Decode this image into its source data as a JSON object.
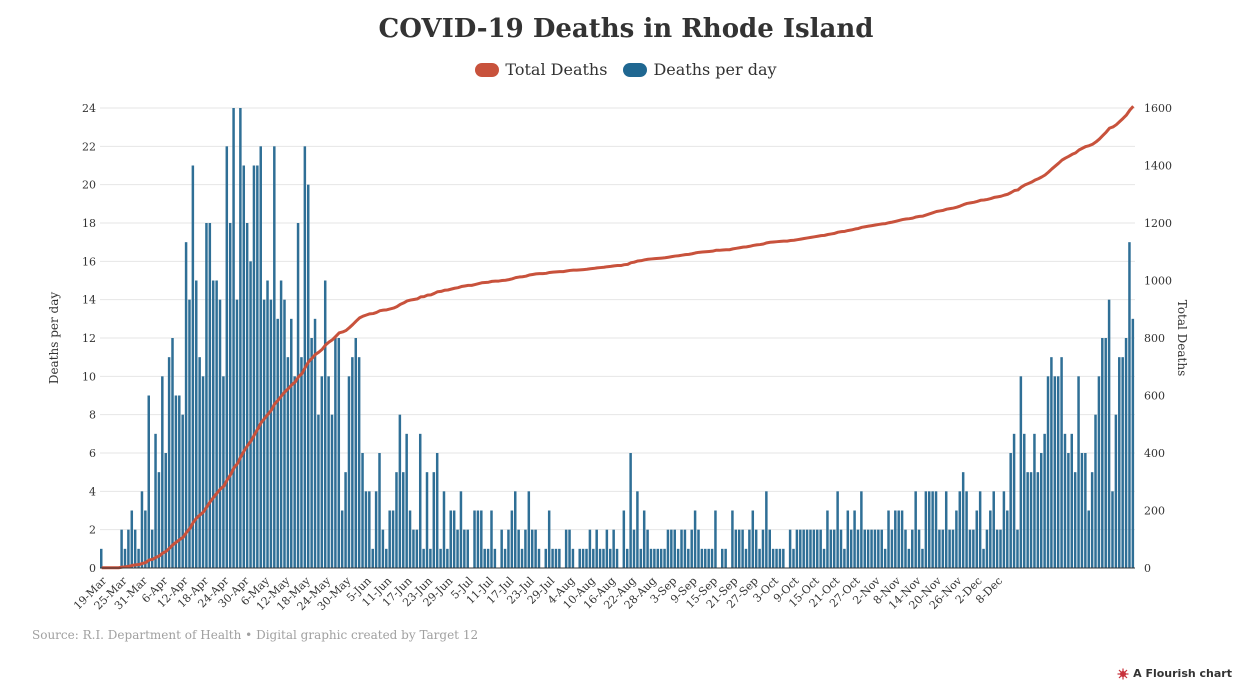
{
  "chart_data": {
    "type": "bar+line",
    "title": "COVID-19 Deaths in Rhode Island",
    "legend": [
      {
        "name": "Total Deaths",
        "color": "#c8523c"
      },
      {
        "name": "Deaths per day",
        "color": "#1f6791"
      }
    ],
    "legend_position": "top-center",
    "start_date": "2020-03-19",
    "end_date": "2020-12-08",
    "x_tick_labels": [
      "19-Mar",
      "25-Mar",
      "31-Mar",
      "6-Apr",
      "12-Apr",
      "18-Apr",
      "24-Apr",
      "30-Apr",
      "6-May",
      "12-May",
      "18-May",
      "24-May",
      "30-May",
      "5-Jun",
      "11-Jun",
      "17-Jun",
      "23-Jun",
      "29-Jun",
      "5-Jul",
      "11-Jul",
      "17-Jul",
      "23-Jul",
      "29-Jul",
      "4-Aug",
      "10-Aug",
      "16-Aug",
      "22-Aug",
      "28-Aug",
      "3-Sep",
      "9-Sep",
      "15-Sep",
      "21-Sep",
      "27-Sep",
      "3-Oct",
      "9-Oct",
      "15-Oct",
      "21-Oct",
      "27-Oct",
      "2-Nov",
      "8-Nov",
      "14-Nov",
      "20-Nov",
      "26-Nov",
      "2-Dec",
      "8-Dec"
    ],
    "y_left": {
      "label": "Deaths per day",
      "range": [
        0,
        24
      ],
      "ticks": [
        0,
        2,
        4,
        6,
        8,
        10,
        12,
        14,
        16,
        18,
        20,
        22,
        24
      ]
    },
    "y_right": {
      "label": "Total Deaths",
      "range": [
        0,
        1600
      ],
      "ticks": [
        0,
        200,
        400,
        600,
        800,
        1000,
        1200,
        1400,
        1600
      ]
    },
    "grid": true,
    "series": [
      {
        "name": "Deaths per day",
        "type": "bar",
        "axis": "left",
        "values": [
          1,
          0,
          0,
          0,
          0,
          0,
          2,
          1,
          2,
          3,
          2,
          1,
          4,
          3,
          9,
          2,
          7,
          5,
          10,
          6,
          11,
          12,
          9,
          9,
          8,
          17,
          14,
          21,
          15,
          11,
          10,
          18,
          18,
          15,
          15,
          14,
          10,
          22,
          18,
          24,
          14,
          24,
          21,
          18,
          16,
          21,
          21,
          22,
          14,
          15,
          14,
          22,
          13,
          15,
          14,
          11,
          13,
          10,
          18,
          11,
          22,
          20,
          12,
          13,
          8,
          10,
          15,
          10,
          8,
          12,
          12,
          3,
          5,
          10,
          11,
          12,
          11,
          6,
          4,
          4,
          1,
          4,
          6,
          2,
          1,
          3,
          3,
          5,
          8,
          5,
          7,
          3,
          2,
          2,
          7,
          1,
          5,
          1,
          5,
          6,
          1,
          4,
          1,
          3,
          3,
          2,
          4,
          2,
          2,
          0,
          3,
          3,
          3,
          1,
          1,
          3,
          1,
          0,
          2,
          1,
          2,
          3,
          4,
          2,
          1,
          2,
          4,
          2,
          2,
          1,
          0,
          1,
          3,
          1,
          1,
          1,
          0,
          2,
          2,
          1,
          0,
          1,
          1,
          1,
          2,
          1,
          2,
          1,
          1,
          2,
          1,
          2,
          1,
          0,
          3,
          1,
          6,
          2,
          4,
          1,
          3,
          2,
          1,
          1,
          1,
          1,
          1,
          2,
          2,
          2,
          1,
          2,
          2,
          1,
          2,
          3,
          2,
          1,
          1,
          1,
          1,
          3,
          0,
          1,
          1,
          0,
          3,
          2,
          2,
          2,
          1,
          2,
          3,
          2,
          1,
          2,
          4,
          2,
          1,
          1,
          1,
          1,
          0,
          2,
          1,
          2,
          2,
          2,
          2,
          2,
          2,
          2,
          2,
          1,
          3,
          2,
          2,
          4,
          2,
          1,
          3,
          2,
          3,
          2,
          4,
          2,
          2,
          2,
          2,
          2,
          2,
          1,
          3,
          2,
          3,
          3,
          3,
          2,
          1,
          2,
          4,
          2,
          1,
          4,
          4,
          4,
          4,
          2,
          2,
          4,
          2,
          2,
          3,
          4,
          5,
          4,
          2,
          2,
          3,
          4,
          1,
          2,
          3,
          4,
          2,
          2,
          4,
          3,
          6,
          7,
          2,
          10,
          7,
          5,
          5,
          7,
          5,
          6,
          7,
          10,
          11,
          10,
          10,
          11,
          7,
          6,
          7,
          5,
          10,
          6,
          6,
          3,
          5,
          8,
          10,
          12,
          12,
          14,
          4,
          8,
          11,
          11,
          12,
          17,
          13
        ]
      },
      {
        "name": "Total Deaths",
        "type": "line",
        "axis": "right",
        "values": []
      }
    ]
  },
  "footer": {
    "source": "Source: R.I. Department of Health • Digital graphic created by Target 12",
    "credit": "A Flourish chart"
  }
}
